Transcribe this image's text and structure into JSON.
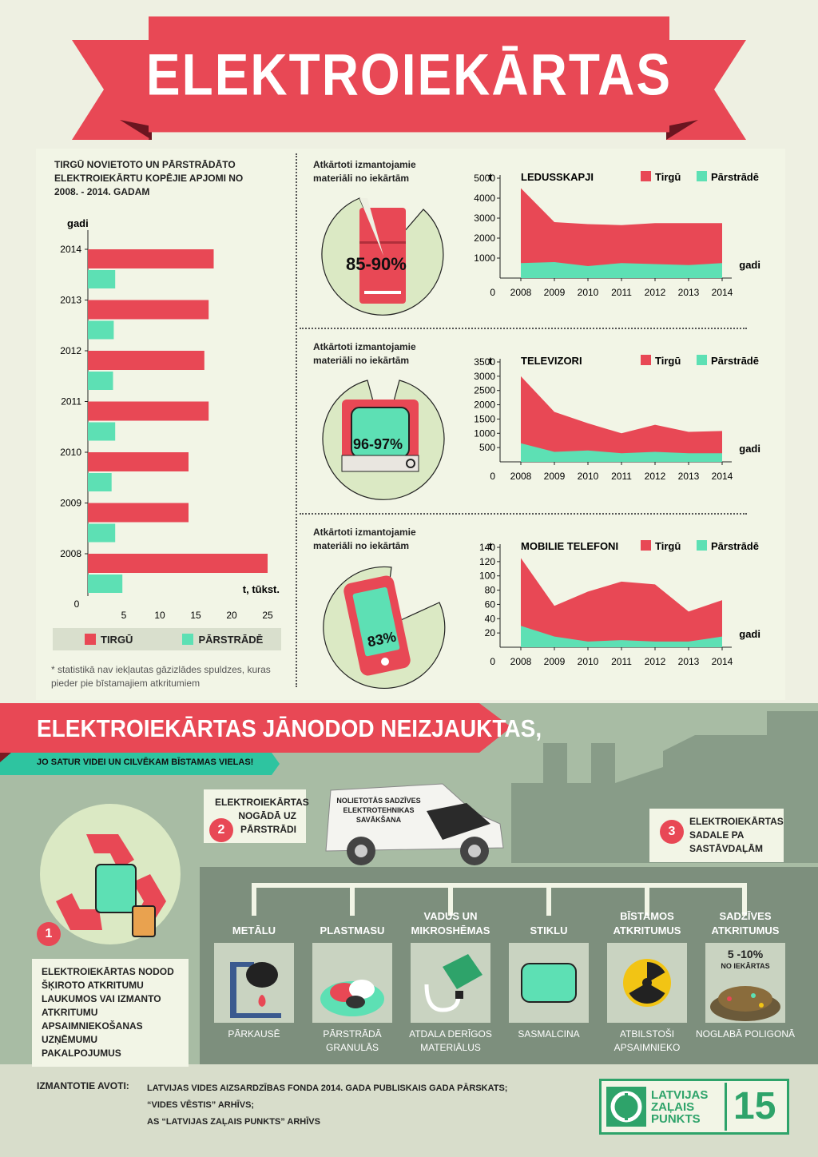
{
  "title": "ELEKTROIEKĀRTAS",
  "bar_chart": {
    "title": "TIRGŪ NOVIETOTO UN PĀRSTRĀDĀTO ELEKTROIEKĀRTU KOPĒJIE APJOMI NO 2008. - 2014. GADAM",
    "ylabel": "gadi",
    "xlabel": "t, tūkst.",
    "zero": "0",
    "xticks": [
      "5",
      "10",
      "15",
      "20",
      "25"
    ],
    "legend": [
      "TIRGŪ",
      "PĀRSTRĀDĒ"
    ],
    "note": "* statistikā nav iekļautas gāzizlādes spuldzes, kuras pieder pie bīstamajiem atkritumiem"
  },
  "sections": [
    {
      "label": "Atkārtoti izmantojamie materiāli no iekārtām",
      "percent": "85-90%"
    },
    {
      "label": "Atkārtoti izmantojamie materiāli no iekārtām",
      "percent": "96-97%"
    },
    {
      "label": "Atkārtoti izmantojamie materiāli no iekārtām",
      "percent": "83%"
    }
  ],
  "area_labels": {
    "unit": "t",
    "xlabel": "gadi",
    "zero": "0",
    "tirgu": "Tirgū",
    "parstrade": "Pārstrādē"
  },
  "colors": {
    "tirgu": "#e84855",
    "parstrade": "#5de0b4",
    "accent": "#e84855",
    "teal": "#2ec4a0"
  },
  "chart_data": [
    {
      "type": "bar",
      "orientation": "horizontal",
      "categories": [
        "2014",
        "2013",
        "2012",
        "2011",
        "2010",
        "2009",
        "2008"
      ],
      "series": [
        {
          "name": "TIRGŪ",
          "values": [
            17.5,
            16.8,
            16.2,
            16.8,
            14.0,
            14.0,
            25.0
          ]
        },
        {
          "name": "PĀRSTRĀDĒ",
          "values": [
            3.8,
            3.6,
            3.5,
            3.8,
            3.3,
            3.8,
            4.8
          ]
        }
      ],
      "xlim": [
        0,
        25
      ]
    },
    {
      "type": "area",
      "title": "LEDUSSKAPJI",
      "x": [
        "2008",
        "2009",
        "2010",
        "2011",
        "2012",
        "2013",
        "2014"
      ],
      "yticks": [
        "1000",
        "2000",
        "3000",
        "4000",
        "5000"
      ],
      "ylim": [
        0,
        5000
      ],
      "series": [
        {
          "name": "Tirgū",
          "values": [
            4500,
            2800,
            2700,
            2650,
            2750,
            2750,
            2750
          ]
        },
        {
          "name": "Pārstrādē",
          "values": [
            750,
            800,
            600,
            750,
            700,
            650,
            750
          ]
        }
      ]
    },
    {
      "type": "area",
      "title": "TELEVIZORI",
      "x": [
        "2008",
        "2009",
        "2010",
        "2011",
        "2012",
        "2013",
        "2014"
      ],
      "yticks": [
        "500",
        "1000",
        "1500",
        "2000",
        "2500",
        "3000",
        "3500"
      ],
      "ylim": [
        0,
        3500
      ],
      "series": [
        {
          "name": "Tirgū",
          "values": [
            3000,
            1750,
            1350,
            1000,
            1300,
            1050,
            1080
          ]
        },
        {
          "name": "Pārstrādē",
          "values": [
            650,
            350,
            400,
            300,
            350,
            300,
            300
          ]
        }
      ]
    },
    {
      "type": "area",
      "title": "MOBILIE TELEFONI",
      "x": [
        "2008",
        "2009",
        "2010",
        "2011",
        "2012",
        "2013",
        "2014"
      ],
      "yticks": [
        "20",
        "40",
        "60",
        "80",
        "100",
        "120",
        "140"
      ],
      "ylim": [
        0,
        140
      ],
      "series": [
        {
          "name": "Tirgū",
          "values": [
            125,
            58,
            78,
            92,
            88,
            50,
            66
          ]
        },
        {
          "name": "Pārstrādē",
          "values": [
            30,
            15,
            8,
            10,
            8,
            8,
            15
          ]
        }
      ]
    }
  ],
  "bottom": {
    "headline": "ELEKTROIEKĀRTAS JĀNODOD NEIZJAUKTAS,",
    "subheadline": "JO SATUR VIDEI UN CILVĒKAM BĪSTAMAS VIELAS!",
    "step1": {
      "num": "1",
      "text": "ELEKTROIEKĀRTAS NODOD ŠĶIROTO ATKRITUMU LAUKUMOS VAI IZMANTO ATKRITUMU APSAIMNIEKOŠANAS UZŅĒMUMU PAKALPOJUMUS"
    },
    "step2": {
      "num": "2",
      "text": "ELEKTROIEKĀRTAS NOGĀDĀ UZ PĀRSTRĀDI"
    },
    "step3": {
      "num": "3",
      "text": "ELEKTROIEKĀRTAS SADALE PA SASTĀVDAĻĀM"
    },
    "van_text": "NOLIETOTĀS SADZĪVES ELEKTROTEHNIKAS SAVĀKŠANA",
    "categories": [
      {
        "name": "METĀLU",
        "action": "PĀRKAUSĒ"
      },
      {
        "name": "PLASTMASU",
        "action": "PĀRSTRĀDĀ GRANULĀS"
      },
      {
        "name": "VADUS UN MIKROSHĒMAS",
        "action": "ATDALA DERĪGOS MATERIĀLUS"
      },
      {
        "name": "STIKLU",
        "action": "SASMALCINA"
      },
      {
        "name": "BĪSTAMOS ATKRITUMUS",
        "action": "ATBILSTOŠI APSAIMNIEKO"
      },
      {
        "name": "SADZĪVES ATKRITUMUS",
        "action": "NOGLABĀ POLIGONĀ"
      }
    ],
    "landfill_percent": "5 -10%",
    "landfill_sub": "NO IEKĀRTAS"
  },
  "sources": {
    "label": "IZMANTOTIE AVOTI:",
    "lines": [
      "LATVIJAS VIDES AIZSARDZĪBAS FONDA 2014. GADA PUBLISKAIS GADA PĀRSKATS;",
      "“VIDES VĒSTIS” ARHĪVS;",
      "AS “LATVIJAS ZAĻAIS PUNKTS” ARHĪVS"
    ]
  },
  "logo": {
    "line1": "LATVIJAS",
    "line2": "ZAĻAIS",
    "line3": "PUNKTS",
    "number": "15"
  }
}
